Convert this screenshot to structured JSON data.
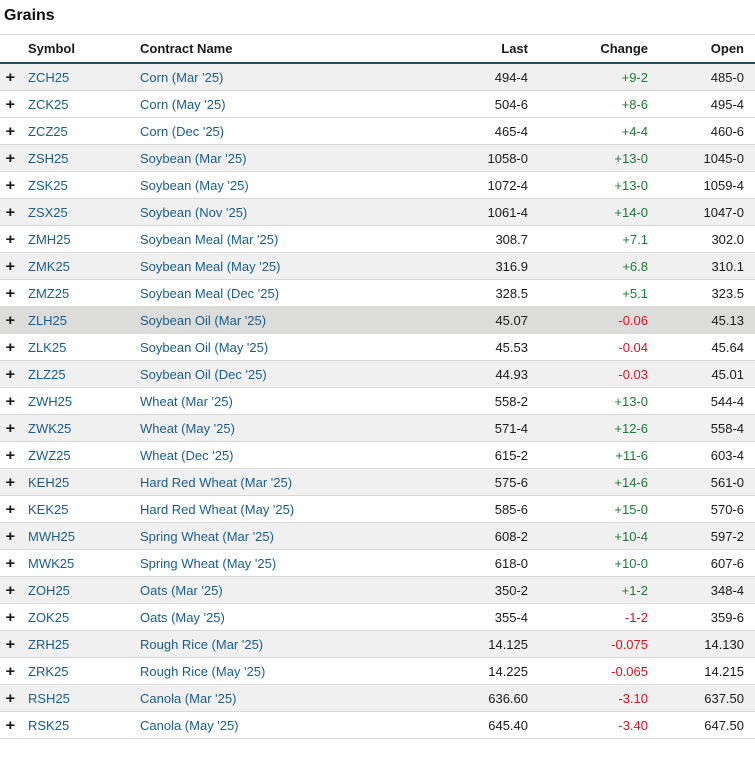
{
  "title": "Grains",
  "columns": {
    "symbol": "Symbol",
    "name": "Contract Name",
    "last": "Last",
    "change": "Change",
    "open": "Open"
  },
  "expand_icon": "+",
  "colors": {
    "link_blue": "#1a5d8d",
    "positive_green": "#1b7a38",
    "negative_red": "#d9151f",
    "header_border_blue": "#1b4f72",
    "stripe_gray": "#f0f0f0",
    "highlight_gray": "#dcdcda"
  },
  "rows": [
    {
      "symbol": "ZCH25",
      "name": "Corn (Mar '25)",
      "last": "494-4",
      "change": "+9-2",
      "open": "485-0",
      "direction": "up",
      "shade": "gray"
    },
    {
      "symbol": "ZCK25",
      "name": "Corn (May '25)",
      "last": "504-6",
      "change": "+8-6",
      "open": "495-4",
      "direction": "up",
      "shade": "white"
    },
    {
      "symbol": "ZCZ25",
      "name": "Corn (Dec '25)",
      "last": "465-4",
      "change": "+4-4",
      "open": "460-6",
      "direction": "up",
      "shade": "white"
    },
    {
      "symbol": "ZSH25",
      "name": "Soybean (Mar '25)",
      "last": "1058-0",
      "change": "+13-0",
      "open": "1045-0",
      "direction": "up",
      "shade": "gray"
    },
    {
      "symbol": "ZSK25",
      "name": "Soybean (May '25)",
      "last": "1072-4",
      "change": "+13-0",
      "open": "1059-4",
      "direction": "up",
      "shade": "white"
    },
    {
      "symbol": "ZSX25",
      "name": "Soybean (Nov '25)",
      "last": "1061-4",
      "change": "+14-0",
      "open": "1047-0",
      "direction": "up",
      "shade": "gray"
    },
    {
      "symbol": "ZMH25",
      "name": "Soybean Meal (Mar '25)",
      "last": "308.7",
      "change": "+7.1",
      "open": "302.0",
      "direction": "up",
      "shade": "white"
    },
    {
      "symbol": "ZMK25",
      "name": "Soybean Meal (May '25)",
      "last": "316.9",
      "change": "+6.8",
      "open": "310.1",
      "direction": "up",
      "shade": "gray"
    },
    {
      "symbol": "ZMZ25",
      "name": "Soybean Meal (Dec '25)",
      "last": "328.5",
      "change": "+5.1",
      "open": "323.5",
      "direction": "up",
      "shade": "white"
    },
    {
      "symbol": "ZLH25",
      "name": "Soybean Oil (Mar '25)",
      "last": "45.07",
      "change": "-0.06",
      "open": "45.13",
      "direction": "down",
      "shade": "highlight"
    },
    {
      "symbol": "ZLK25",
      "name": "Soybean Oil (May '25)",
      "last": "45.53",
      "change": "-0.04",
      "open": "45.64",
      "direction": "down",
      "shade": "white"
    },
    {
      "symbol": "ZLZ25",
      "name": "Soybean Oil (Dec '25)",
      "last": "44.93",
      "change": "-0.03",
      "open": "45.01",
      "direction": "down",
      "shade": "gray"
    },
    {
      "symbol": "ZWH25",
      "name": "Wheat (Mar '25)",
      "last": "558-2",
      "change": "+13-0",
      "open": "544-4",
      "direction": "up",
      "shade": "white"
    },
    {
      "symbol": "ZWK25",
      "name": "Wheat (May '25)",
      "last": "571-4",
      "change": "+12-6",
      "open": "558-4",
      "direction": "up",
      "shade": "gray"
    },
    {
      "symbol": "ZWZ25",
      "name": "Wheat (Dec '25)",
      "last": "615-2",
      "change": "+11-6",
      "open": "603-4",
      "direction": "up",
      "shade": "white"
    },
    {
      "symbol": "KEH25",
      "name": "Hard Red Wheat (Mar '25)",
      "last": "575-6",
      "change": "+14-6",
      "open": "561-0",
      "direction": "up",
      "shade": "gray"
    },
    {
      "symbol": "KEK25",
      "name": "Hard Red Wheat (May '25)",
      "last": "585-6",
      "change": "+15-0",
      "open": "570-6",
      "direction": "up",
      "shade": "white"
    },
    {
      "symbol": "MWH25",
      "name": "Spring Wheat (Mar '25)",
      "last": "608-2",
      "change": "+10-4",
      "open": "597-2",
      "direction": "up",
      "shade": "gray"
    },
    {
      "symbol": "MWK25",
      "name": "Spring Wheat (May '25)",
      "last": "618-0",
      "change": "+10-0",
      "open": "607-6",
      "direction": "up",
      "shade": "white"
    },
    {
      "symbol": "ZOH25",
      "name": "Oats (Mar '25)",
      "last": "350-2",
      "change": "+1-2",
      "open": "348-4",
      "direction": "up",
      "shade": "gray"
    },
    {
      "symbol": "ZOK25",
      "name": "Oats (May '25)",
      "last": "355-4",
      "change": "-1-2",
      "open": "359-6",
      "direction": "down",
      "shade": "white"
    },
    {
      "symbol": "ZRH25",
      "name": "Rough Rice (Mar '25)",
      "last": "14.125",
      "change": "-0.075",
      "open": "14.130",
      "direction": "down",
      "shade": "gray"
    },
    {
      "symbol": "ZRK25",
      "name": "Rough Rice (May '25)",
      "last": "14.225",
      "change": "-0.065",
      "open": "14.215",
      "direction": "down",
      "shade": "white"
    },
    {
      "symbol": "RSH25",
      "name": "Canola (Mar '25)",
      "last": "636.60",
      "change": "-3.10",
      "open": "637.50",
      "direction": "down",
      "shade": "gray"
    },
    {
      "symbol": "RSK25",
      "name": "Canola (May '25)",
      "last": "645.40",
      "change": "-3.40",
      "open": "647.50",
      "direction": "down",
      "shade": "white"
    }
  ]
}
